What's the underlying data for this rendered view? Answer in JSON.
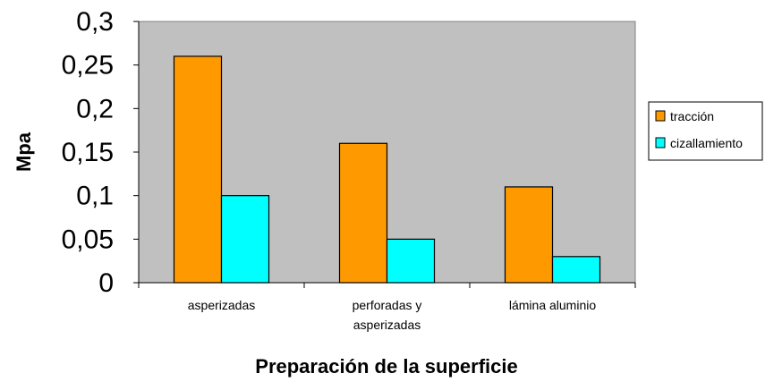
{
  "chart_data": {
    "type": "bar",
    "categories": [
      "asperizadas",
      "perforadas y asperizadas",
      "lámina aluminio"
    ],
    "category_lines": [
      [
        "asperizadas"
      ],
      [
        "perforadas y",
        "asperizadas"
      ],
      [
        "lámina aluminio"
      ]
    ],
    "series": [
      {
        "name": "tracción",
        "values": [
          0.26,
          0.16,
          0.11
        ],
        "color": "#FF9900"
      },
      {
        "name": "cizallamiento",
        "values": [
          0.1,
          0.05,
          0.03
        ],
        "color": "#00FFFF"
      }
    ],
    "title": "",
    "xlabel": "Preparación de la superficie",
    "ylabel": "Mpa",
    "ylim": [
      0,
      0.3
    ],
    "yticks": [
      "0",
      "0,05",
      "0,1",
      "0,15",
      "0,2",
      "0,25",
      "0,3"
    ],
    "yticks_values": [
      0,
      0.05,
      0.1,
      0.15,
      0.2,
      0.25,
      0.3
    ],
    "plot_background": "#C0C0C0",
    "grid": false,
    "legend": "right"
  }
}
